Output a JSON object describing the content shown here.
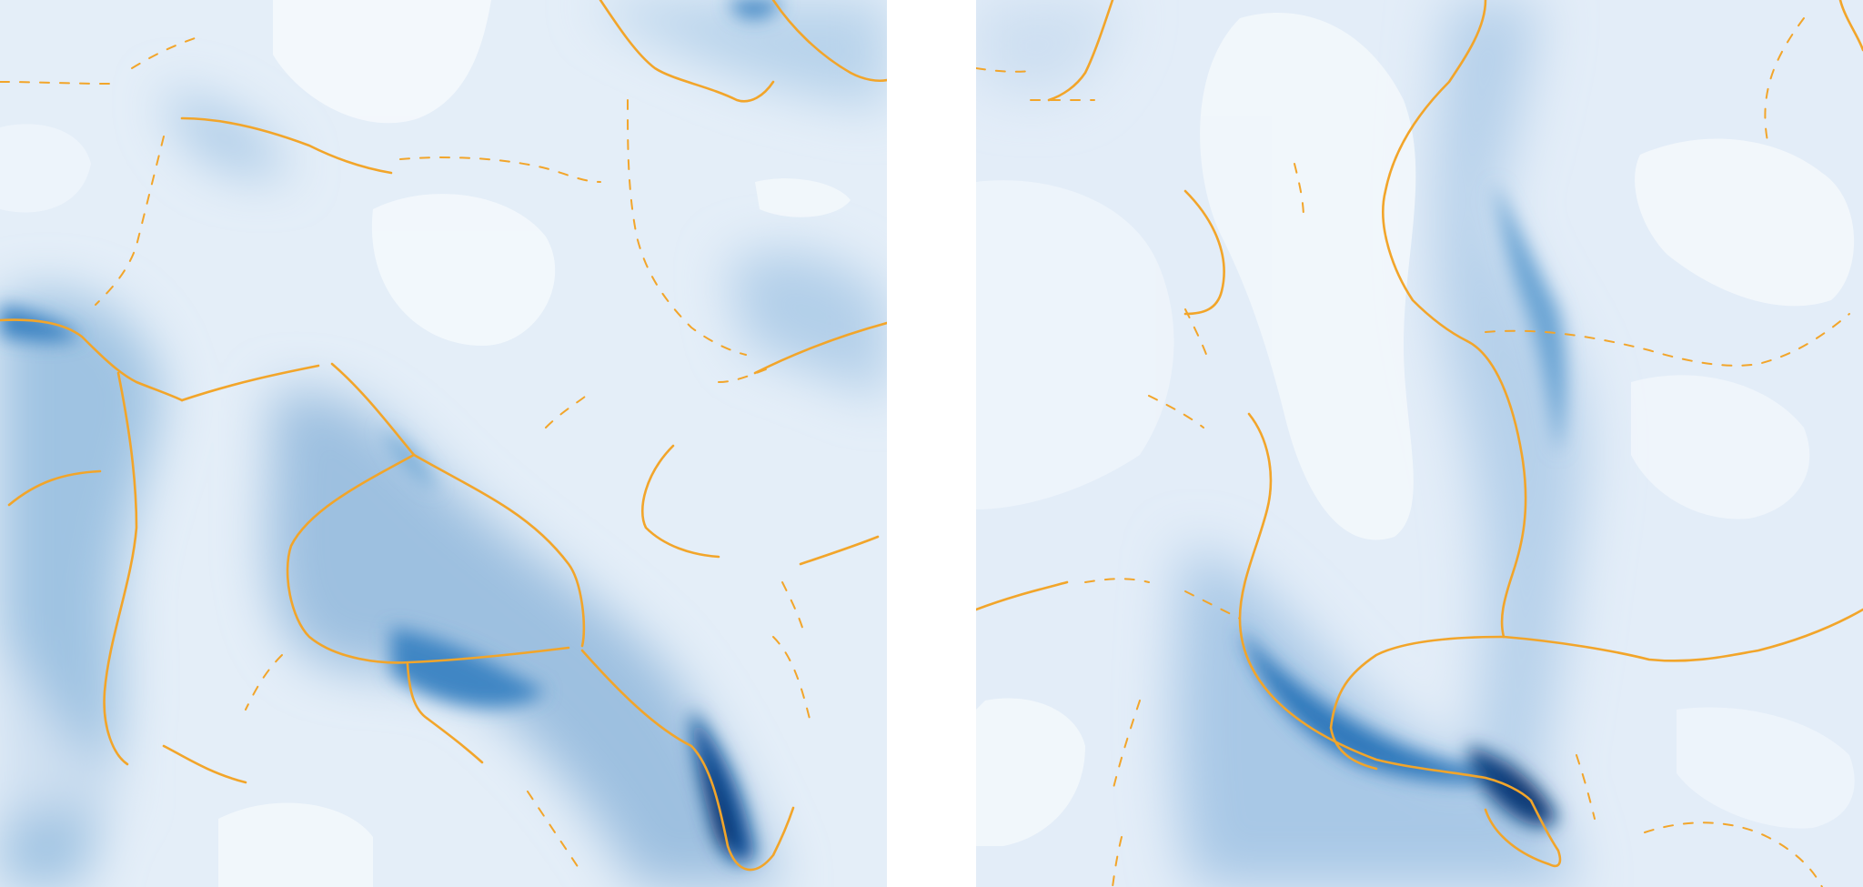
{
  "figure": {
    "panels": [
      {
        "id": "left"
      },
      {
        "id": "right"
      }
    ],
    "colors": {
      "field_low": "#f4f8fc",
      "field_mid": "#c6dbef",
      "field_high": "#084a91",
      "trace": "#f2a52a"
    }
  }
}
